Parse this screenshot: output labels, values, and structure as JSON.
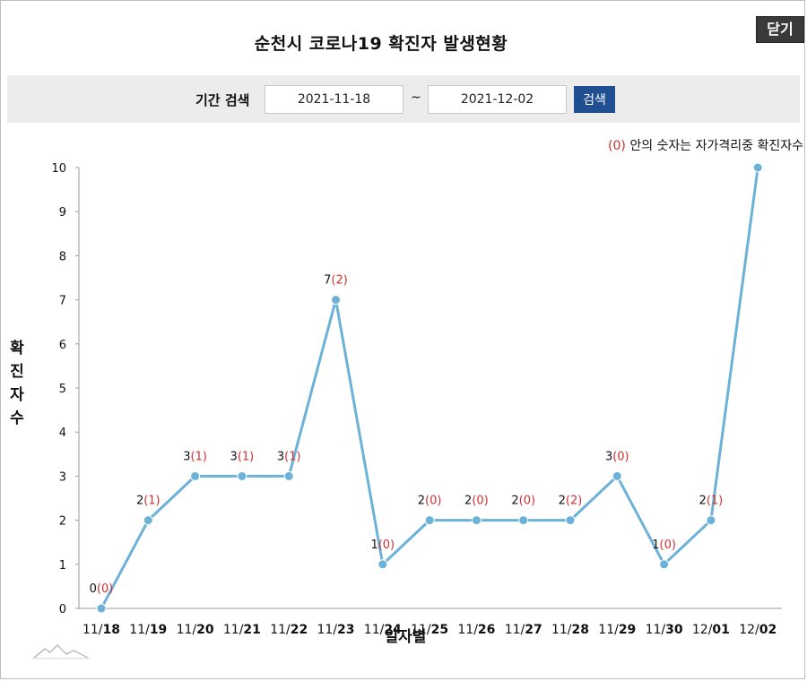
{
  "title": "순천시 코로나19 확진자 발생현황",
  "close_label": "닫기",
  "search": {
    "label": "기간 검색",
    "from": "2021-11-18",
    "tilde": "~",
    "to": "2021-12-02",
    "button": "검색"
  },
  "note": {
    "paren_example": "(0)",
    "text": " 안의 숫자는 자가격리중 확진자수"
  },
  "colors": {
    "line": "#6cb2d8",
    "isolation": "#d32f2f",
    "button": "#1f4e91"
  },
  "chart_data": {
    "type": "line",
    "ylabel": "확진자수",
    "xlabel": "일자별",
    "ylim": [
      0,
      10
    ],
    "yticks": [
      0,
      1,
      2,
      3,
      4,
      5,
      6,
      7,
      8,
      9,
      10
    ],
    "grid": false,
    "categories": [
      "11/18",
      "11/19",
      "11/20",
      "11/21",
      "11/22",
      "11/23",
      "11/24",
      "11/25",
      "11/26",
      "11/27",
      "11/28",
      "11/29",
      "11/30",
      "12/01",
      "12/02"
    ],
    "series": [
      {
        "values": [
          0,
          2,
          3,
          3,
          3,
          7,
          1,
          2,
          2,
          2,
          2,
          3,
          1,
          2,
          10
        ]
      }
    ],
    "isolation_counts": [
      0,
      1,
      1,
      1,
      1,
      2,
      0,
      0,
      0,
      0,
      2,
      0,
      0,
      1,
      null
    ]
  }
}
